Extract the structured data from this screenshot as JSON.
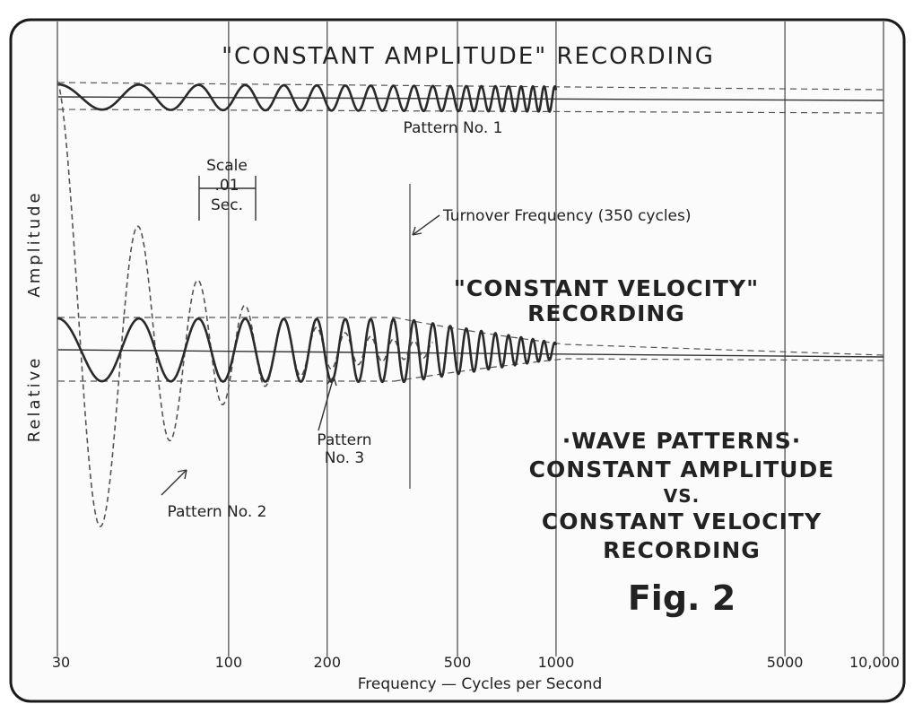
{
  "texts": {
    "title_constant_amplitude": "\"CONSTANT AMPLITUDE\" RECORDING",
    "pattern1": "Pattern No. 1",
    "pattern2": "Pattern No. 2",
    "pattern3_line1": "Pattern",
    "pattern3_line2": "No. 3",
    "scale_line1": "Scale",
    "scale_line2": ".01",
    "scale_line3": "Sec.",
    "turnover": "Turnover Frequency (350 cycles)",
    "constant_velocity_line1": "\"CONSTANT VELOCITY\"",
    "constant_velocity_line2": "RECORDING",
    "block_line1": "·WAVE PATTERNS·",
    "block_line2": "CONSTANT AMPLITUDE",
    "block_line3": "VS.",
    "block_line4": "CONSTANT VELOCITY",
    "block_line5": "RECORDING",
    "fig_label": "Fig. 2",
    "y_label_relative": "Relative",
    "y_label_amplitude": "Amplitude",
    "x_axis_title": "Frequency — Cycles per Second"
  },
  "x_axis": {
    "scale": "log",
    "range": [
      30,
      10000
    ],
    "ticks": [
      {
        "value": 30,
        "label": "30"
      },
      {
        "value": 100,
        "label": "100"
      },
      {
        "value": 200,
        "label": "200"
      },
      {
        "value": 500,
        "label": "500"
      },
      {
        "value": 1000,
        "label": "1000"
      },
      {
        "value": 5000,
        "label": "5000"
      },
      {
        "value": 10000,
        "label": "10,000"
      }
    ],
    "gridlines": [
      100,
      200,
      500,
      1000,
      5000,
      10000
    ]
  },
  "turnover_frequency": 350,
  "colors": {
    "ink": "#222222",
    "paper": "#fbfbfb"
  }
}
